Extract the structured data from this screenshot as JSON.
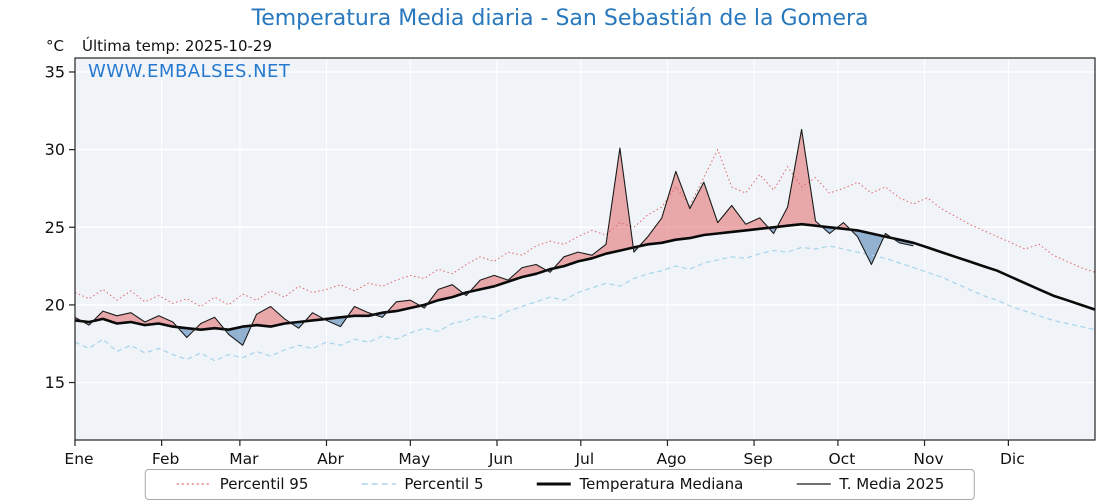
{
  "header": {
    "title": "Temperatura Media diaria - San Sebastián de la Gomera",
    "units_label": "°C",
    "last_temp": "Última temp: 2025-10-29",
    "watermark": "WWW.EMBALSES.NET"
  },
  "colors": {
    "title": "#2878be",
    "watermark": "#2679cf",
    "text": "#111111",
    "plot_bg": "#f0f4f9",
    "grid": "#ffffff",
    "frame": "#222222",
    "p95": "#e06666",
    "p5": "#a8d3e8",
    "median": "#0a0a0a",
    "t2025": "#1a1a1a",
    "band_above": "#e05c5c",
    "band_below": "#5585b5"
  },
  "legend": {
    "items": [
      {
        "label": "Percentil 95"
      },
      {
        "label": "Percentil 5"
      },
      {
        "label": "Temperatura Mediana"
      },
      {
        "label": "T. Media 2025"
      }
    ]
  },
  "chart_data": {
    "type": "line",
    "title": "Temperatura Media diaria - San Sebastián de la Gomera",
    "xlabel": "",
    "ylabel": "°C",
    "ylim": [
      11.3,
      35.9
    ],
    "yticks": [
      15,
      20,
      25,
      30,
      35
    ],
    "xlim": [
      1,
      366
    ],
    "grid": true,
    "legend_position": "bottom",
    "month_ticks": {
      "labels": [
        "Ene",
        "Feb",
        "Mar",
        "Abr",
        "May",
        "Jun",
        "Jul",
        "Ago",
        "Sep",
        "Oct",
        "Nov",
        "Dic"
      ],
      "days": [
        1,
        32,
        60,
        91,
        121,
        152,
        182,
        213,
        244,
        274,
        305,
        335
      ]
    },
    "days": [
      1,
      6,
      11,
      16,
      21,
      26,
      31,
      36,
      41,
      46,
      51,
      56,
      61,
      66,
      71,
      76,
      81,
      86,
      91,
      96,
      101,
      106,
      111,
      116,
      121,
      126,
      131,
      136,
      141,
      146,
      151,
      156,
      161,
      166,
      171,
      176,
      181,
      186,
      191,
      196,
      201,
      206,
      211,
      216,
      221,
      226,
      231,
      236,
      241,
      246,
      251,
      256,
      261,
      266,
      271,
      276,
      281,
      286,
      291,
      296,
      301,
      306,
      311,
      316,
      321,
      326,
      331,
      336,
      341,
      346,
      351,
      356,
      361,
      366
    ],
    "series": [
      {
        "name": "Percentil 95",
        "values": [
          20.8,
          20.4,
          21.0,
          20.3,
          20.9,
          20.2,
          20.6,
          20.1,
          20.4,
          19.9,
          20.5,
          20.0,
          20.7,
          20.3,
          20.9,
          20.5,
          21.2,
          20.8,
          21.0,
          21.3,
          20.9,
          21.4,
          21.2,
          21.6,
          21.9,
          21.7,
          22.3,
          22.0,
          22.6,
          23.1,
          22.8,
          23.4,
          23.2,
          23.8,
          24.1,
          23.9,
          24.4,
          24.8,
          24.5,
          25.3,
          25.0,
          25.8,
          26.3,
          27.6,
          26.4,
          28.2,
          30.0,
          27.6,
          27.2,
          28.4,
          27.4,
          28.9,
          27.6,
          28.2,
          27.2,
          27.5,
          27.9,
          27.2,
          27.6,
          26.9,
          26.5,
          26.9,
          26.2,
          25.7,
          25.2,
          24.8,
          24.4,
          24.0,
          23.6,
          23.9,
          23.2,
          22.8,
          22.4,
          22.1
        ]
      },
      {
        "name": "Percentil 5",
        "values": [
          17.6,
          17.2,
          17.8,
          17.0,
          17.4,
          16.9,
          17.2,
          16.8,
          16.5,
          16.9,
          16.4,
          16.8,
          16.6,
          17.0,
          16.7,
          17.1,
          17.4,
          17.2,
          17.6,
          17.4,
          17.8,
          17.6,
          18.0,
          17.8,
          18.2,
          18.5,
          18.3,
          18.8,
          19.0,
          19.3,
          19.1,
          19.6,
          19.9,
          20.2,
          20.5,
          20.3,
          20.8,
          21.1,
          21.4,
          21.2,
          21.7,
          22.0,
          22.2,
          22.5,
          22.3,
          22.7,
          22.9,
          23.1,
          23.0,
          23.3,
          23.5,
          23.4,
          23.7,
          23.6,
          23.8,
          23.6,
          23.4,
          23.2,
          23.0,
          22.7,
          22.4,
          22.1,
          21.8,
          21.4,
          21.0,
          20.6,
          20.3,
          19.9,
          19.6,
          19.3,
          19.0,
          18.8,
          18.6,
          18.4
        ]
      },
      {
        "name": "Temperatura Mediana",
        "values": [
          19.0,
          18.9,
          19.1,
          18.8,
          18.9,
          18.7,
          18.8,
          18.6,
          18.5,
          18.4,
          18.5,
          18.4,
          18.6,
          18.7,
          18.6,
          18.8,
          18.9,
          19.0,
          19.1,
          19.2,
          19.3,
          19.3,
          19.5,
          19.6,
          19.8,
          20.0,
          20.3,
          20.5,
          20.8,
          21.0,
          21.2,
          21.5,
          21.8,
          22.0,
          22.3,
          22.5,
          22.8,
          23.0,
          23.3,
          23.5,
          23.7,
          23.9,
          24.0,
          24.2,
          24.3,
          24.5,
          24.6,
          24.7,
          24.8,
          24.9,
          25.0,
          25.1,
          25.2,
          25.1,
          25.0,
          24.9,
          24.8,
          24.6,
          24.4,
          24.2,
          24.0,
          23.7,
          23.4,
          23.1,
          22.8,
          22.5,
          22.2,
          21.8,
          21.4,
          21.0,
          20.6,
          20.3,
          20.0,
          19.7
        ]
      },
      {
        "name": "T. Media 2025",
        "last_date": "2025-10-29",
        "days": [
          1,
          6,
          11,
          16,
          21,
          26,
          31,
          36,
          41,
          46,
          51,
          56,
          61,
          66,
          71,
          76,
          81,
          86,
          91,
          96,
          101,
          106,
          111,
          116,
          121,
          126,
          131,
          136,
          141,
          146,
          151,
          156,
          161,
          166,
          171,
          176,
          181,
          186,
          191,
          196,
          201,
          206,
          211,
          216,
          221,
          226,
          231,
          236,
          241,
          246,
          251,
          256,
          261,
          266,
          271,
          276,
          281,
          286,
          291,
          296,
          301
        ],
        "values": [
          19.2,
          18.7,
          19.6,
          19.3,
          19.5,
          18.9,
          19.3,
          18.9,
          17.9,
          18.8,
          19.2,
          18.1,
          17.4,
          19.4,
          19.9,
          19.1,
          18.5,
          19.5,
          19.0,
          18.6,
          19.9,
          19.5,
          19.2,
          20.2,
          20.3,
          19.8,
          21.0,
          21.3,
          20.6,
          21.6,
          21.9,
          21.6,
          22.4,
          22.6,
          22.1,
          23.1,
          23.4,
          23.2,
          23.9,
          30.1,
          23.4,
          24.4,
          25.6,
          28.6,
          26.2,
          27.9,
          25.3,
          26.4,
          25.2,
          25.6,
          24.6,
          26.3,
          31.3,
          25.4,
          24.6,
          25.3,
          24.4,
          22.6,
          24.6,
          24.0,
          23.8
        ]
      }
    ]
  }
}
